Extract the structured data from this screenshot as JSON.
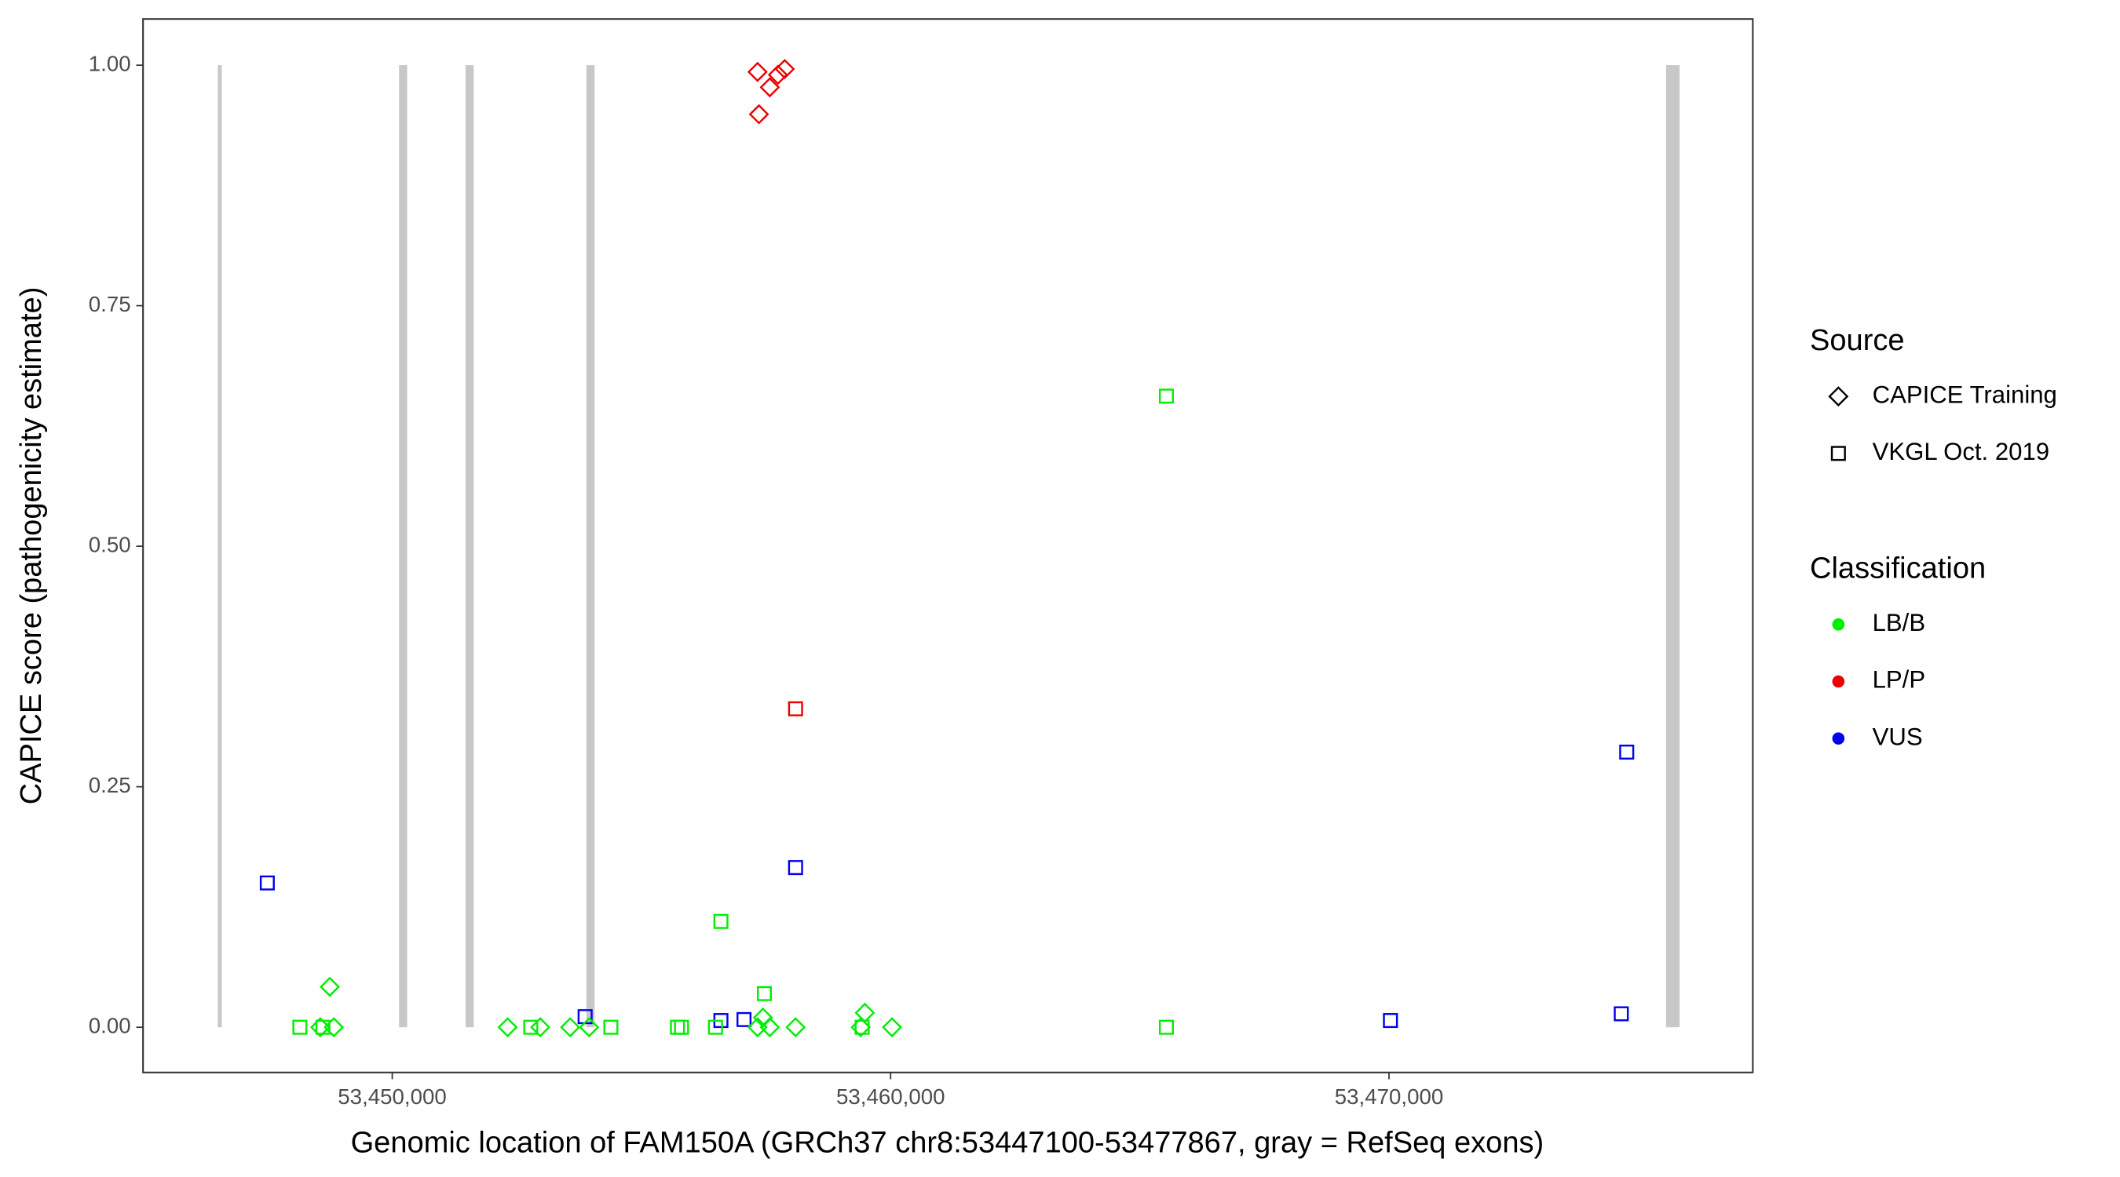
{
  "chart_data": {
    "type": "scatter",
    "x_label": "Genomic location of FAM150A (GRCh37 chr8:53447100-53477867, gray = RefSeq exons)",
    "y_label": "CAPICE score (pathogenicity estimate)",
    "xlim": [
      53445000,
      53477300
    ],
    "ylim": [
      -0.047,
      1.048
    ],
    "xticks": [
      {
        "value": 53450000,
        "label": "53,450,000"
      },
      {
        "value": 53460000,
        "label": "53,460,000"
      },
      {
        "value": 53470000,
        "label": "53,470,000"
      }
    ],
    "yticks": [
      {
        "value": 0,
        "label": "0.00"
      },
      {
        "value": 0.25,
        "label": "0.25"
      },
      {
        "value": 0.5,
        "label": "0.50"
      },
      {
        "value": 0.75,
        "label": "0.75"
      },
      {
        "value": 1,
        "label": "1.00"
      }
    ],
    "exon_color": "#c8c8c8",
    "exons": [
      {
        "start": 53446500,
        "end": 53446580,
        "low": 0,
        "high": 1
      },
      {
        "start": 53450136,
        "end": 53450300,
        "low": 0,
        "high": 1
      },
      {
        "start": 53451471,
        "end": 53451635,
        "low": 0,
        "high": 1
      },
      {
        "start": 53453896,
        "end": 53454060,
        "low": 0,
        "high": 1
      },
      {
        "start": 53475559,
        "end": 53475831,
        "low": 0,
        "high": 1
      }
    ],
    "source_title": "Source",
    "sources": [
      {
        "name": "CAPICE Training",
        "shape": "diamond"
      },
      {
        "name": "VKGL Oct. 2019",
        "shape": "square"
      }
    ],
    "classification_title": "Classification",
    "classifications": [
      {
        "name": "LB/B",
        "color": "#00ee00"
      },
      {
        "name": "LP/P",
        "color": "#ee0000"
      },
      {
        "name": "VUS",
        "color": "#0000ee"
      }
    ],
    "series": [
      {
        "source": "CAPICE Training",
        "classification": "LP/P",
        "x": [
          53457330,
          53457358,
          53457576,
          53457739,
          53457876
        ],
        "values": [
          0.993,
          0.949,
          0.977,
          0.99,
          0.996
        ]
      },
      {
        "source": "VKGL Oct. 2019",
        "classification": "LP/P",
        "x": [
          53458093
        ],
        "values": [
          0.331
        ]
      },
      {
        "source": "VKGL Oct. 2019",
        "classification": "VUS",
        "x": [
          53447493,
          53453870,
          53456595,
          53457058,
          53458093,
          53470029,
          53474661,
          53474770
        ],
        "values": [
          0.15,
          0.011,
          0.007,
          0.008,
          0.166,
          0.007,
          0.014,
          0.286
        ]
      },
      {
        "source": "VKGL Oct. 2019",
        "classification": "LB/B",
        "x": [
          53448147,
          53448610,
          53452780,
          53454387,
          53455723,
          53455805,
          53456486,
          53456595,
          53457467,
          53459429,
          53465533,
          53465533
        ],
        "values": [
          0,
          0,
          0,
          0,
          0,
          0,
          0,
          0.11,
          0.035,
          0,
          0.656,
          0
        ]
      },
      {
        "source": "CAPICE Training",
        "classification": "LB/B",
        "x": [
          53448747,
          53448556,
          53448828,
          53452316,
          53452970,
          53453570,
          53453951,
          53457330,
          53457439,
          53457576,
          53458093,
          53459401,
          53459483,
          53460028
        ],
        "values": [
          0.042,
          0,
          0,
          0,
          0,
          0,
          0,
          0,
          0.01,
          0,
          0,
          0,
          0.015,
          0
        ]
      }
    ]
  }
}
